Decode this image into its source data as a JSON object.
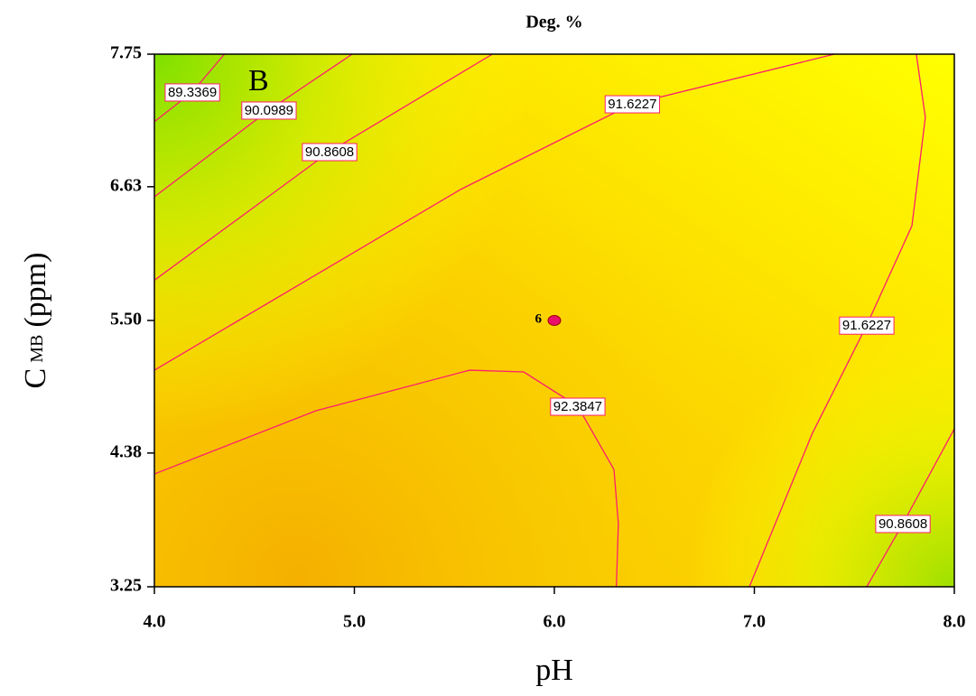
{
  "chart_data": {
    "type": "contour",
    "title": "Deg. %",
    "x_label": "pH",
    "y_label": "C",
    "y_label_subscript": "MB",
    "y_label_unit": "(ppm)",
    "annotation": "B",
    "xlim": [
      4,
      8
    ],
    "ylim": [
      3.25,
      7.75
    ],
    "xticks": [
      {
        "value": 4,
        "label": "4.0"
      },
      {
        "value": 5,
        "label": "5.0"
      },
      {
        "value": 6,
        "label": "6.0"
      },
      {
        "value": 7,
        "label": "7.0"
      },
      {
        "value": 8,
        "label": "8.0"
      }
    ],
    "yticks": [
      3.25,
      4.38,
      {
        "value": 5.5,
        "label": "5.50"
      },
      6.63,
      7.75
    ],
    "line_color": "#ff1e6e",
    "contours": [
      {
        "level": 89.3369,
        "x": [
          4,
          4.19,
          4.35
        ],
        "y": [
          7.18,
          7.43,
          7.75
        ]
      },
      {
        "level": 90.0989,
        "x": [
          4,
          4.573,
          4.989
        ],
        "y": [
          6.545,
          7.277,
          7.75
        ]
      },
      {
        "level": 90.8608,
        "x": [
          4,
          4.876,
          5.69
        ],
        "y": [
          5.84,
          6.926,
          7.75
        ]
      },
      {
        "level": 91.6227,
        "x": [
          4,
          5.53,
          6.39,
          7.4
        ],
        "y": [
          5.08,
          6.606,
          7.33,
          7.75
        ]
      },
      {
        "level": 91.6227,
        "x": [
          7.81,
          7.855,
          7.788,
          7.562,
          7.29,
          6.975
        ],
        "y": [
          7.75,
          7.216,
          6.3,
          5.46,
          4.546,
          3.25
        ]
      },
      {
        "level": 92.3847,
        "x": [
          4,
          4.808,
          5.576,
          5.847,
          6.117,
          6.298,
          6.32,
          6.31
        ],
        "y": [
          4.203,
          4.737,
          5.08,
          5.065,
          4.775,
          4.241,
          3.784,
          3.25
        ]
      },
      {
        "level": 90.8608,
        "x": [
          7.562,
          7.743,
          8
        ],
        "y": [
          3.25,
          3.784,
          4.584
        ]
      }
    ],
    "points": [
      {
        "x": 6,
        "y": 5.5,
        "label": "6",
        "color": "#e8106a"
      }
    ]
  }
}
